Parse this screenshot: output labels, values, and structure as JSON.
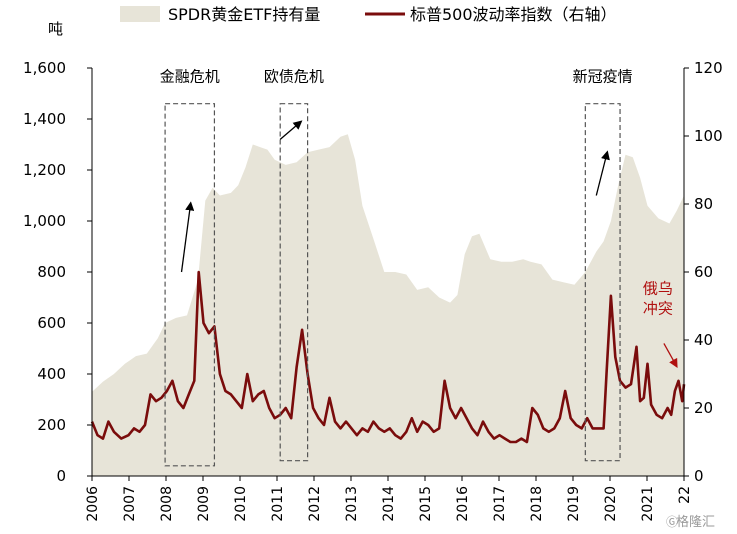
{
  "chart_data": {
    "type": "area",
    "y_unit_label": "吨",
    "legend": [
      {
        "name": "SPDR黄金ETF持有量",
        "color": "#e7e4d8",
        "shape": "area"
      },
      {
        "name": "标普500波动率指数（右轴）",
        "color": "#7a0c0c",
        "shape": "line"
      }
    ],
    "x_ticks": [
      "2006",
      "2007",
      "2008",
      "2009",
      "2010",
      "2011",
      "2012",
      "2013",
      "2014",
      "2015",
      "2016",
      "2017",
      "2018",
      "2019",
      "2020",
      "2021",
      "22"
    ],
    "x_range": [
      2006.0,
      2022.2
    ],
    "y_left_ticks": [
      "0",
      "200",
      "400",
      "600",
      "800",
      "1,000",
      "1,200",
      "1,400",
      "1,600"
    ],
    "y_left_range": [
      0,
      1600
    ],
    "y_right_ticks": [
      "0",
      "20",
      "40",
      "60",
      "80",
      "100",
      "120"
    ],
    "y_right_range": [
      0,
      120
    ],
    "series": [
      {
        "name": "SPDR黄金ETF持有量",
        "axis": "left",
        "color": "#e7e4d8",
        "points": [
          [
            2006.0,
            330
          ],
          [
            2006.3,
            370
          ],
          [
            2006.6,
            400
          ],
          [
            2006.9,
            440
          ],
          [
            2007.2,
            470
          ],
          [
            2007.5,
            480
          ],
          [
            2007.8,
            540
          ],
          [
            2008.0,
            600
          ],
          [
            2008.3,
            620
          ],
          [
            2008.6,
            630
          ],
          [
            2008.9,
            770
          ],
          [
            2009.1,
            1080
          ],
          [
            2009.3,
            1130
          ],
          [
            2009.5,
            1100
          ],
          [
            2009.8,
            1110
          ],
          [
            2010.0,
            1140
          ],
          [
            2010.2,
            1210
          ],
          [
            2010.4,
            1300
          ],
          [
            2010.6,
            1290
          ],
          [
            2010.8,
            1280
          ],
          [
            2011.0,
            1240
          ],
          [
            2011.3,
            1220
          ],
          [
            2011.6,
            1230
          ],
          [
            2011.9,
            1270
          ],
          [
            2012.2,
            1280
          ],
          [
            2012.5,
            1290
          ],
          [
            2012.8,
            1330
          ],
          [
            2013.0,
            1340
          ],
          [
            2013.2,
            1240
          ],
          [
            2013.4,
            1060
          ],
          [
            2013.7,
            930
          ],
          [
            2014.0,
            800
          ],
          [
            2014.3,
            800
          ],
          [
            2014.6,
            790
          ],
          [
            2014.9,
            730
          ],
          [
            2015.2,
            740
          ],
          [
            2015.5,
            700
          ],
          [
            2015.8,
            680
          ],
          [
            2016.0,
            710
          ],
          [
            2016.2,
            870
          ],
          [
            2016.4,
            940
          ],
          [
            2016.6,
            950
          ],
          [
            2016.9,
            850
          ],
          [
            2017.2,
            840
          ],
          [
            2017.5,
            840
          ],
          [
            2017.8,
            850
          ],
          [
            2018.0,
            840
          ],
          [
            2018.3,
            830
          ],
          [
            2018.6,
            770
          ],
          [
            2018.9,
            760
          ],
          [
            2019.2,
            750
          ],
          [
            2019.5,
            800
          ],
          [
            2019.8,
            880
          ],
          [
            2020.0,
            920
          ],
          [
            2020.2,
            1000
          ],
          [
            2020.4,
            1140
          ],
          [
            2020.6,
            1260
          ],
          [
            2020.8,
            1250
          ],
          [
            2021.0,
            1170
          ],
          [
            2021.2,
            1060
          ],
          [
            2021.5,
            1010
          ],
          [
            2021.8,
            990
          ],
          [
            2022.0,
            1040
          ],
          [
            2022.2,
            1100
          ]
        ]
      },
      {
        "name": "标普500波动率指数（右轴）",
        "axis": "right",
        "color": "#7a0c0c",
        "points": [
          [
            2006.0,
            16
          ],
          [
            2006.15,
            12
          ],
          [
            2006.3,
            11
          ],
          [
            2006.45,
            16
          ],
          [
            2006.6,
            13
          ],
          [
            2006.8,
            11
          ],
          [
            2007.0,
            12
          ],
          [
            2007.15,
            14
          ],
          [
            2007.3,
            13
          ],
          [
            2007.45,
            15
          ],
          [
            2007.6,
            24
          ],
          [
            2007.75,
            22
          ],
          [
            2007.9,
            23
          ],
          [
            2008.05,
            25
          ],
          [
            2008.2,
            28
          ],
          [
            2008.35,
            22
          ],
          [
            2008.5,
            20
          ],
          [
            2008.65,
            24
          ],
          [
            2008.8,
            28
          ],
          [
            2008.92,
            60
          ],
          [
            2009.05,
            45
          ],
          [
            2009.2,
            42
          ],
          [
            2009.35,
            44
          ],
          [
            2009.5,
            30
          ],
          [
            2009.65,
            25
          ],
          [
            2009.8,
            24
          ],
          [
            2009.95,
            22
          ],
          [
            2010.1,
            20
          ],
          [
            2010.25,
            30
          ],
          [
            2010.4,
            22
          ],
          [
            2010.55,
            24
          ],
          [
            2010.7,
            25
          ],
          [
            2010.85,
            20
          ],
          [
            2011.0,
            17
          ],
          [
            2011.15,
            18
          ],
          [
            2011.3,
            20
          ],
          [
            2011.45,
            17
          ],
          [
            2011.6,
            32
          ],
          [
            2011.75,
            43
          ],
          [
            2011.9,
            30
          ],
          [
            2012.05,
            20
          ],
          [
            2012.2,
            17
          ],
          [
            2012.35,
            15
          ],
          [
            2012.5,
            23
          ],
          [
            2012.65,
            16
          ],
          [
            2012.8,
            14
          ],
          [
            2012.95,
            16
          ],
          [
            2013.1,
            14
          ],
          [
            2013.25,
            12
          ],
          [
            2013.4,
            14
          ],
          [
            2013.55,
            13
          ],
          [
            2013.7,
            16
          ],
          [
            2013.85,
            14
          ],
          [
            2014.0,
            13
          ],
          [
            2014.15,
            14
          ],
          [
            2014.3,
            12
          ],
          [
            2014.45,
            11
          ],
          [
            2014.6,
            13
          ],
          [
            2014.75,
            17
          ],
          [
            2014.9,
            13
          ],
          [
            2015.05,
            16
          ],
          [
            2015.2,
            15
          ],
          [
            2015.35,
            13
          ],
          [
            2015.5,
            14
          ],
          [
            2015.65,
            28
          ],
          [
            2015.8,
            20
          ],
          [
            2015.95,
            17
          ],
          [
            2016.1,
            20
          ],
          [
            2016.25,
            17
          ],
          [
            2016.4,
            14
          ],
          [
            2016.55,
            12
          ],
          [
            2016.7,
            16
          ],
          [
            2016.85,
            13
          ],
          [
            2017.0,
            11
          ],
          [
            2017.15,
            12
          ],
          [
            2017.3,
            11
          ],
          [
            2017.45,
            10
          ],
          [
            2017.6,
            10
          ],
          [
            2017.75,
            11
          ],
          [
            2017.9,
            10
          ],
          [
            2018.05,
            20
          ],
          [
            2018.2,
            18
          ],
          [
            2018.35,
            14
          ],
          [
            2018.5,
            13
          ],
          [
            2018.65,
            14
          ],
          [
            2018.8,
            17
          ],
          [
            2018.95,
            25
          ],
          [
            2019.1,
            17
          ],
          [
            2019.25,
            15
          ],
          [
            2019.4,
            14
          ],
          [
            2019.55,
            17
          ],
          [
            2019.7,
            14
          ],
          [
            2019.85,
            14
          ],
          [
            2020.0,
            14
          ],
          [
            2020.08,
            30
          ],
          [
            2020.2,
            53
          ],
          [
            2020.32,
            35
          ],
          [
            2020.45,
            28
          ],
          [
            2020.6,
            26
          ],
          [
            2020.75,
            27
          ],
          [
            2020.9,
            38
          ],
          [
            2021.0,
            22
          ],
          [
            2021.1,
            23
          ],
          [
            2021.2,
            33
          ],
          [
            2021.3,
            21
          ],
          [
            2021.45,
            18
          ],
          [
            2021.6,
            17
          ],
          [
            2021.75,
            20
          ],
          [
            2021.85,
            18
          ],
          [
            2021.95,
            25
          ],
          [
            2022.05,
            28
          ],
          [
            2022.15,
            22
          ],
          [
            2022.2,
            27
          ]
        ]
      }
    ],
    "grid": false,
    "legend_position": "top-center",
    "annotations": [
      {
        "label": "金融危机",
        "x_range": [
          2008.0,
          2009.35
        ],
        "y_range": [
          40,
          1460
        ],
        "arrow": {
          "from": [
            2008.45,
            800
          ],
          "to": [
            2008.7,
            1070
          ]
        }
      },
      {
        "label": "欧债危机",
        "x_range": [
          2011.15,
          2011.9
        ],
        "y_range": [
          60,
          1460
        ],
        "arrow": {
          "from": [
            2011.15,
            1320
          ],
          "to": [
            2011.72,
            1390
          ]
        }
      },
      {
        "label": "新冠疫情",
        "x_range": [
          2019.5,
          2020.45
        ],
        "y_range": [
          60,
          1460
        ],
        "arrow": {
          "from": [
            2019.8,
            1100
          ],
          "to": [
            2020.1,
            1270
          ]
        }
      },
      {
        "label": "俄乌冲突",
        "text_color": "#b01010",
        "arrow": {
          "from": [
            2021.65,
            520
          ],
          "to": [
            2022.0,
            430
          ]
        },
        "arrow_color": "#b01010"
      }
    ]
  },
  "watermark": "格隆汇"
}
